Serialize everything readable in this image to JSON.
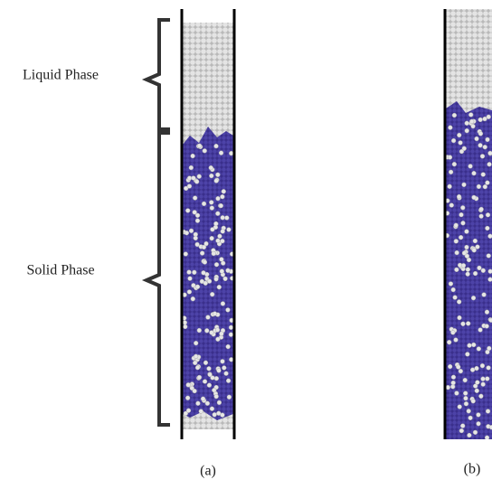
{
  "labels": {
    "liquid": "Liquid Phase",
    "solid": "Solid Phase"
  },
  "panels": [
    {
      "caption": "(a)"
    },
    {
      "caption": "(b)"
    }
  ]
}
